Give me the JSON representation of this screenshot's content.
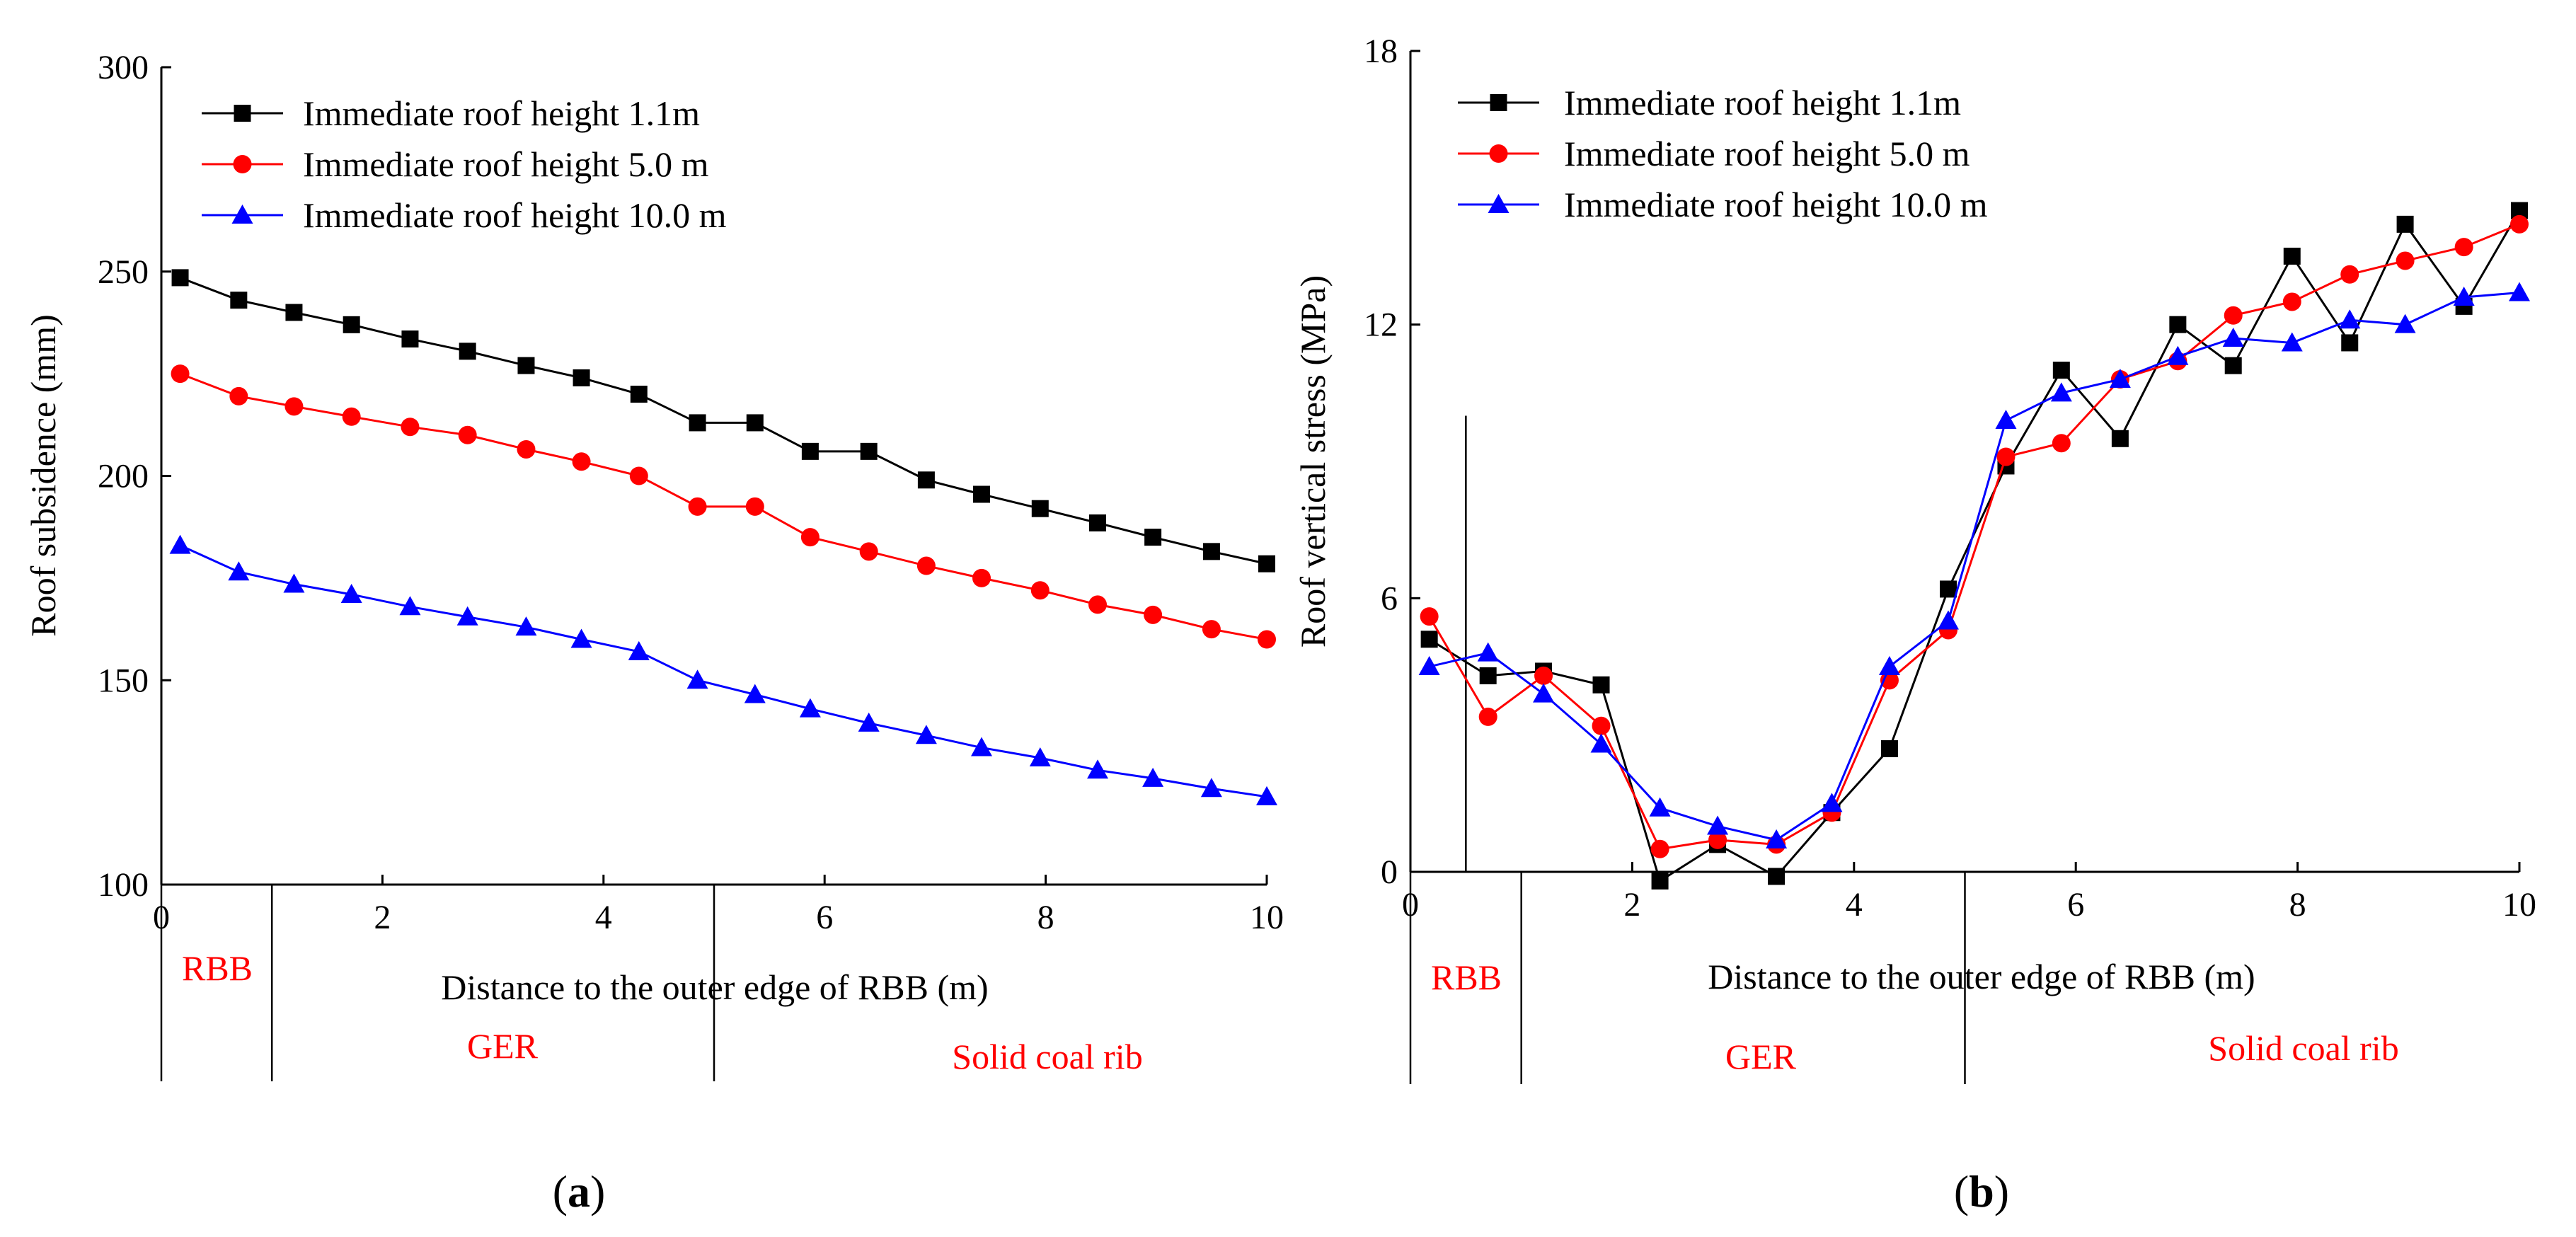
{
  "chart_data": [
    {
      "type": "line",
      "panel_label": "(a)",
      "xlabel": "Distance to the outer edge of RBB (m)",
      "ylabel": "Roof subsidence (mm)",
      "xlim": [
        0,
        10
      ],
      "ylim": [
        100,
        300
      ],
      "xticks": [
        0,
        2,
        4,
        6,
        8,
        10
      ],
      "yticks": [
        100,
        150,
        200,
        250,
        300
      ],
      "legend_position": "top-left",
      "zones": [
        {
          "label": "RBB",
          "from": 0,
          "to": 1
        },
        {
          "label": "GER",
          "from": 1,
          "to": 5
        },
        {
          "label": "Solid coal rib",
          "from": 5,
          "to": 10
        }
      ],
      "x": [
        0.17,
        0.7,
        1.2,
        1.72,
        2.25,
        2.77,
        3.3,
        3.8,
        4.32,
        4.85,
        5.37,
        5.87,
        6.4,
        6.92,
        7.42,
        7.95,
        8.47,
        8.97,
        9.5,
        10.0
      ],
      "series": [
        {
          "name": "Immediate roof height 1.1m",
          "color": "#000000",
          "marker": "square",
          "values": [
            248.5,
            243,
            240,
            237,
            233.5,
            230.5,
            227,
            224,
            220,
            213,
            213,
            206,
            206,
            199,
            195.5,
            192,
            188.5,
            185,
            181.5,
            178.5
          ]
        },
        {
          "name": "Immediate roof height 5.0 m",
          "color": "#ff0000",
          "marker": "circle",
          "values": [
            225,
            219.5,
            217,
            214.5,
            212,
            210,
            206.5,
            203.5,
            200,
            192.5,
            192.5,
            185,
            181.5,
            178,
            175,
            172,
            168.5,
            166,
            162.5,
            160
          ]
        },
        {
          "name": "Immediate roof height 10.0 m",
          "color": "#0000ff",
          "marker": "triangle",
          "values": [
            183,
            176.5,
            173.5,
            171,
            168,
            165.5,
            163,
            160,
            157,
            150,
            146.5,
            143,
            139.5,
            136.5,
            133.5,
            131,
            128,
            126,
            123.5,
            121.5
          ]
        }
      ]
    },
    {
      "type": "line",
      "panel_label": "(b)",
      "xlabel": "Distance to the outer edge of RBB (m)",
      "ylabel": "Roof vertical stress (MPa)",
      "xlim": [
        0,
        10
      ],
      "ylim": [
        0,
        18
      ],
      "xticks": [
        0,
        2,
        4,
        6,
        8,
        10
      ],
      "yticks": [
        0,
        6,
        12,
        18
      ],
      "legend_position": "top-left",
      "zones": [
        {
          "label": "RBB",
          "from": 0,
          "to": 1
        },
        {
          "label": "GER",
          "from": 1,
          "to": 5
        },
        {
          "label": "Solid coal rib",
          "from": 5,
          "to": 10
        }
      ],
      "inner_marker_x": 0.5,
      "x": [
        0.17,
        0.7,
        1.2,
        1.72,
        2.25,
        2.77,
        3.3,
        3.8,
        4.32,
        4.85,
        5.37,
        5.87,
        6.4,
        6.92,
        7.42,
        7.95,
        8.47,
        8.97,
        9.5,
        10.0
      ],
      "series": [
        {
          "name": "Immediate roof height 1.1m",
          "color": "#000000",
          "marker": "square",
          "values": [
            5.1,
            4.3,
            4.4,
            4.1,
            -0.2,
            0.6,
            -0.1,
            1.3,
            2.7,
            6.2,
            8.9,
            11.0,
            9.5,
            12.0,
            11.1,
            13.5,
            11.6,
            14.2,
            12.4,
            14.5
          ]
        },
        {
          "name": "Immediate roof height 5.0 m",
          "color": "#ff0000",
          "marker": "circle",
          "values": [
            5.6,
            3.4,
            4.3,
            3.2,
            0.5,
            0.7,
            0.6,
            1.3,
            4.2,
            5.3,
            9.1,
            9.4,
            10.8,
            11.2,
            12.2,
            12.5,
            13.1,
            13.4,
            13.7,
            14.2
          ]
        },
        {
          "name": "Immediate roof height 10.0 m",
          "color": "#0000ff",
          "marker": "triangle",
          "values": [
            4.5,
            4.8,
            3.9,
            2.8,
            1.4,
            1.0,
            0.7,
            1.5,
            4.5,
            5.5,
            9.9,
            10.5,
            10.8,
            11.3,
            11.7,
            11.6,
            12.1,
            12.0,
            12.6,
            12.7
          ]
        }
      ]
    }
  ]
}
